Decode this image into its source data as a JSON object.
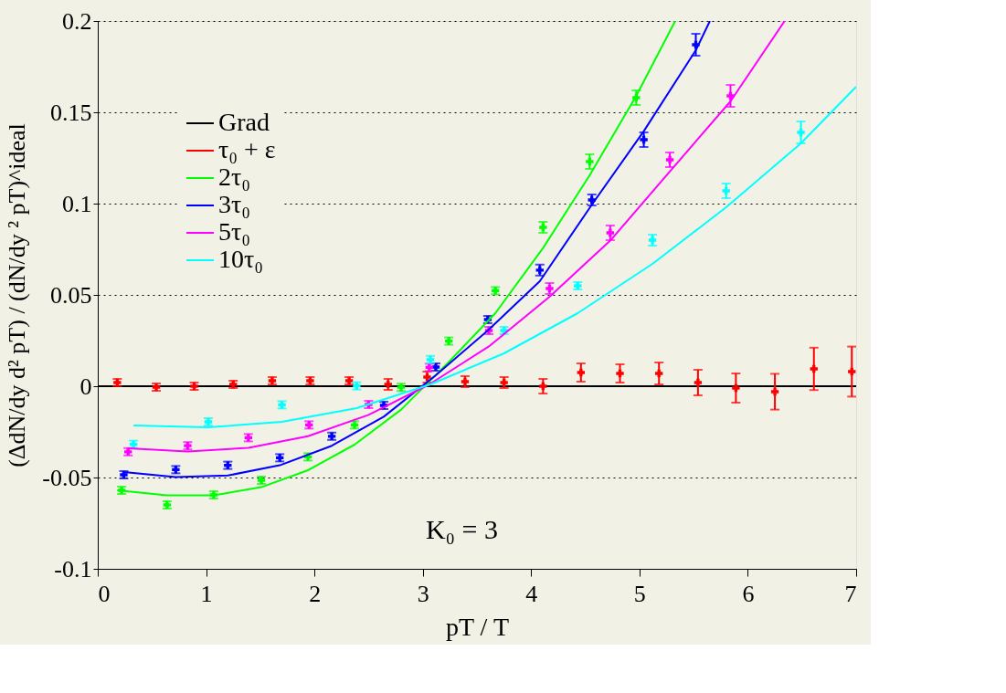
{
  "chart_data": {
    "type": "scatter",
    "xlabel": "pT / T",
    "ylabel": "(ΔdN/dy d² pT) / (dN/dy ² pT)^ideal",
    "xlim": [
      0,
      7
    ],
    "xticks": [
      0,
      1,
      2,
      3,
      4,
      5,
      6,
      7
    ],
    "ylim": [
      -0.1,
      0.2
    ],
    "yticks": [
      -0.1,
      -0.05,
      0,
      0.05,
      0.1,
      0.15,
      0.2
    ],
    "grid": "y",
    "legend": "top left",
    "annotations": [
      "K₀ = 3"
    ],
    "series": [
      {
        "name": "Grad",
        "type": "line",
        "line_style": "solid",
        "color": "#000000",
        "x": [
          0,
          7
        ],
        "values": [
          0,
          0
        ]
      },
      {
        "name": "τ₀ + ε",
        "marker": "cross",
        "color": "#ff0000",
        "x": [
          0.18,
          0.54,
          0.89,
          1.25,
          1.61,
          1.96,
          2.32,
          2.68,
          3.04,
          3.39,
          3.75,
          4.11,
          4.46,
          4.82,
          5.18,
          5.54,
          5.89,
          6.25,
          6.61,
          6.96
        ],
        "values": [
          0.002,
          -0.0005,
          0,
          0.001,
          0.003,
          0.003,
          0.003,
          0.001,
          0.005,
          0.0025,
          0.002,
          0,
          0.0075,
          0.007,
          0.007,
          0.002,
          -0.001,
          -0.003,
          0.0095,
          0.008
        ],
        "errors": [
          0.002,
          0.002,
          0.002,
          0.002,
          0.002,
          0.002,
          0.002,
          0.003,
          0.003,
          0.003,
          0.003,
          0.004,
          0.005,
          0.005,
          0.006,
          0.007,
          0.008,
          0.0098,
          0.0116,
          0.0137
        ]
      },
      {
        "name": "2τ₀",
        "marker": "cross",
        "color": "#00ff00",
        "x": [
          0.22,
          0.64,
          1.07,
          1.51,
          1.94,
          2.37,
          2.8,
          3.24,
          3.67,
          4.11,
          4.54,
          4.97
        ],
        "values": [
          -0.057,
          -0.065,
          -0.0595,
          -0.0515,
          -0.0387,
          -0.0212,
          -0.0006,
          0.0247,
          0.0523,
          0.087,
          0.123,
          0.158
        ],
        "errors": [
          0.002,
          0.002,
          0.002,
          0.002,
          0.002,
          0.002,
          0.002,
          0.002,
          0.002,
          0.003,
          0.004,
          0.004
        ]
      },
      {
        "name": "3τ₀",
        "marker": "cross",
        "color": "#0000ff",
        "x": [
          0.24,
          0.72,
          1.2,
          1.68,
          2.16,
          2.64,
          3.12,
          3.6,
          4.08,
          4.56,
          5.04,
          5.52
        ],
        "values": [
          -0.0485,
          -0.0457,
          -0.0433,
          -0.0392,
          -0.0274,
          -0.0105,
          0.0105,
          0.0365,
          0.0636,
          0.102,
          0.135,
          0.187
        ],
        "errors": [
          0.002,
          0.002,
          0.002,
          0.002,
          0.002,
          0.002,
          0.002,
          0.002,
          0.003,
          0.003,
          0.004,
          0.006
        ]
      },
      {
        "name": "5τ₀",
        "marker": "cross",
        "color": "#ff00ff",
        "x": [
          0.28,
          0.83,
          1.39,
          1.95,
          2.5,
          3.06,
          3.61,
          4.17,
          4.73,
          5.28,
          5.84
        ],
        "values": [
          -0.0359,
          -0.0326,
          -0.0282,
          -0.0212,
          -0.01,
          0.0103,
          0.0305,
          0.0535,
          0.084,
          0.124,
          0.159
        ],
        "errors": [
          0.002,
          0.002,
          0.002,
          0.002,
          0.002,
          0.002,
          0.002,
          0.003,
          0.004,
          0.004,
          0.006
        ]
      },
      {
        "name": "10τ₀",
        "marker": "cross",
        "color": "#00ffff",
        "x": [
          0.33,
          1.02,
          1.7,
          2.39,
          3.07,
          3.75,
          4.43,
          5.12,
          5.8,
          6.49
        ],
        "values": [
          -0.0318,
          -0.0195,
          -0.0102,
          0.0002,
          0.0146,
          0.0305,
          0.055,
          0.08,
          0.107,
          0.139
        ],
        "errors": [
          0.002,
          0.002,
          0.002,
          0.002,
          0.002,
          0.002,
          0.002,
          0.003,
          0.004,
          0.006
        ]
      },
      {
        "type": "line",
        "color": "#00ff00",
        "x": [
          0.18,
          0.64,
          1.07,
          1.51,
          1.94,
          2.37,
          2.8,
          3.24,
          3.67,
          4.11,
          4.54,
          4.97,
          5.33
        ],
        "values": [
          -0.057,
          -0.0597,
          -0.0597,
          -0.0553,
          -0.046,
          -0.032,
          -0.0128,
          0.0133,
          0.04,
          0.0757,
          0.1155,
          0.159,
          0.2
        ]
      },
      {
        "type": "line",
        "color": "#0000ff",
        "x": [
          0.24,
          0.72,
          1.2,
          1.68,
          2.16,
          2.64,
          3.12,
          3.6,
          4.08,
          4.56,
          5.04,
          5.52,
          5.65
        ],
        "values": [
          -0.047,
          -0.0497,
          -0.0489,
          -0.0433,
          -0.0326,
          -0.0167,
          0.006,
          0.0305,
          0.0575,
          0.0994,
          0.1397,
          0.184,
          0.2
        ]
      },
      {
        "type": "line",
        "color": "#ff00ff",
        "x": [
          0.28,
          0.83,
          1.39,
          1.94,
          2.5,
          3.06,
          3.61,
          4.17,
          4.73,
          5.28,
          5.84,
          6.34
        ],
        "values": [
          -0.034,
          -0.0357,
          -0.0338,
          -0.0274,
          -0.0157,
          0.001,
          0.0218,
          0.049,
          0.0797,
          0.1176,
          0.156,
          0.2
        ]
      },
      {
        "type": "line",
        "color": "#00ffff",
        "x": [
          0.33,
          1.02,
          1.7,
          2.39,
          3.07,
          3.75,
          4.43,
          5.12,
          5.8,
          6.49,
          7.0
        ],
        "values": [
          -0.0215,
          -0.0225,
          -0.0195,
          -0.012,
          0.001,
          0.018,
          0.04,
          0.067,
          0.098,
          0.133,
          0.164
        ]
      }
    ]
  }
}
